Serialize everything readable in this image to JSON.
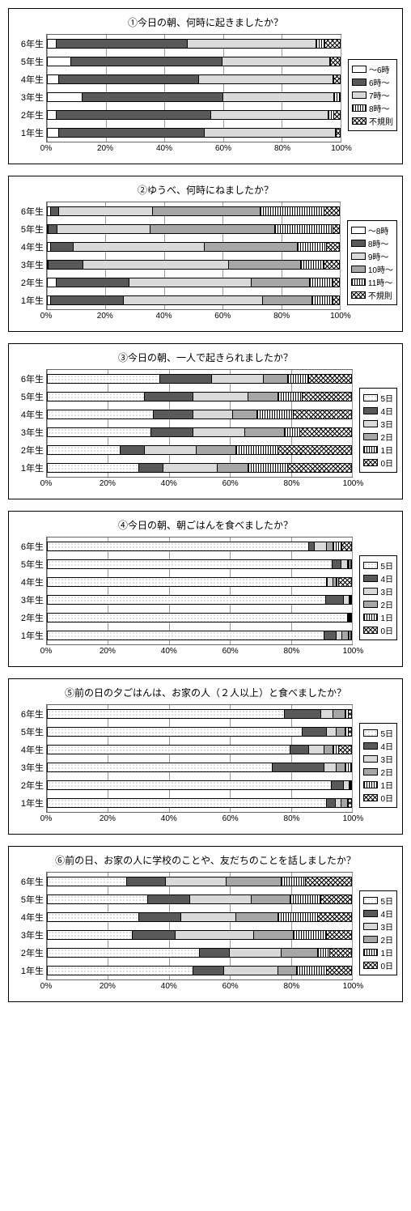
{
  "global": {
    "categories": [
      "6年生",
      "5年生",
      "4年生",
      "3年生",
      "2年生",
      "1年生"
    ],
    "xticks": [
      0,
      20,
      40,
      60,
      80,
      100
    ],
    "xtick_labels": [
      "0%",
      "20%",
      "40%",
      "60%",
      "80%",
      "100%"
    ],
    "patterns": {
      "white": "pat-white",
      "dark": "pat-dark",
      "light": "pat-light",
      "gray": "pat-gray",
      "vstripe": "pat-vstripe",
      "dots": "pat-dots",
      "cross": "pat-cross"
    }
  },
  "charts": [
    {
      "title": "①今日の朝、何時に起きましたか？",
      "legend": [
        {
          "label": "～6時",
          "pattern": "white"
        },
        {
          "label": "6時～",
          "pattern": "dark"
        },
        {
          "label": "7時～",
          "pattern": "light"
        },
        {
          "label": "8時～",
          "pattern": "vstripe"
        },
        {
          "label": "不規則",
          "pattern": "cross"
        }
      ],
      "series": [
        [
          3,
          45,
          44,
          3,
          5
        ],
        [
          8,
          52,
          37,
          0,
          3
        ],
        [
          4,
          48,
          46,
          0,
          2
        ],
        [
          12,
          48,
          38,
          2,
          0
        ],
        [
          3,
          53,
          40,
          2,
          2
        ],
        [
          4,
          50,
          45,
          0,
          1
        ]
      ]
    },
    {
      "title": "②ゆうべ、何時にねましたか？",
      "legend": [
        {
          "label": "～8時",
          "pattern": "white"
        },
        {
          "label": "8時～",
          "pattern": "dark"
        },
        {
          "label": "9時～",
          "pattern": "light"
        },
        {
          "label": "10時～",
          "pattern": "gray"
        },
        {
          "label": "11時～",
          "pattern": "vstripe"
        },
        {
          "label": "不規則",
          "pattern": "cross"
        }
      ],
      "series": [
        [
          1,
          3,
          32,
          37,
          22,
          5
        ],
        [
          0,
          3,
          32,
          43,
          20,
          2
        ],
        [
          1,
          8,
          45,
          32,
          10,
          4
        ],
        [
          0,
          12,
          50,
          25,
          8,
          5
        ],
        [
          3,
          25,
          42,
          20,
          8,
          2
        ],
        [
          1,
          25,
          48,
          17,
          7,
          2
        ]
      ]
    },
    {
      "title": "③今日の朝、一人で起きられましたか？",
      "legend": [
        {
          "label": "5日",
          "pattern": "dots"
        },
        {
          "label": "4日",
          "pattern": "dark"
        },
        {
          "label": "3日",
          "pattern": "light"
        },
        {
          "label": "2日",
          "pattern": "gray"
        },
        {
          "label": "1日",
          "pattern": "vstripe"
        },
        {
          "label": "0日",
          "pattern": "cross"
        }
      ],
      "series": [
        [
          37,
          17,
          17,
          8,
          7,
          14
        ],
        [
          32,
          16,
          18,
          10,
          8,
          16
        ],
        [
          35,
          13,
          13,
          8,
          12,
          19
        ],
        [
          34,
          14,
          17,
          13,
          5,
          17
        ],
        [
          24,
          8,
          17,
          13,
          14,
          24
        ],
        [
          30,
          8,
          18,
          10,
          13,
          21
        ]
      ]
    },
    {
      "title": "④今日の朝、朝ごはんを食べましたか？",
      "legend": [
        {
          "label": "5日",
          "pattern": "dots"
        },
        {
          "label": "4日",
          "pattern": "dark"
        },
        {
          "label": "3日",
          "pattern": "light"
        },
        {
          "label": "2日",
          "pattern": "gray"
        },
        {
          "label": "1日",
          "pattern": "vstripe"
        },
        {
          "label": "0日",
          "pattern": "cross"
        }
      ],
      "series": [
        [
          86,
          2,
          4,
          2,
          3,
          3
        ],
        [
          94,
          3,
          2,
          0,
          1,
          0
        ],
        [
          92,
          0,
          2,
          1,
          1,
          4
        ],
        [
          92,
          6,
          2,
          0,
          0,
          0
        ],
        [
          100,
          0,
          0,
          0,
          0,
          0
        ],
        [
          91,
          4,
          2,
          2,
          1,
          0
        ]
      ]
    },
    {
      "title": "⑤前の日の夕ごはんは、お家の人（２人以上）と食べましたか？",
      "legend": [
        {
          "label": "5日",
          "pattern": "dots"
        },
        {
          "label": "4日",
          "pattern": "dark"
        },
        {
          "label": "3日",
          "pattern": "light"
        },
        {
          "label": "2日",
          "pattern": "gray"
        },
        {
          "label": "1日",
          "pattern": "vstripe"
        },
        {
          "label": "0日",
          "pattern": "cross"
        }
      ],
      "series": [
        [
          78,
          12,
          4,
          4,
          1,
          1
        ],
        [
          84,
          8,
          3,
          3,
          1,
          1
        ],
        [
          80,
          6,
          5,
          3,
          2,
          4
        ],
        [
          74,
          17,
          4,
          3,
          2,
          0
        ],
        [
          94,
          4,
          2,
          0,
          0,
          0
        ],
        [
          92,
          3,
          2,
          2,
          0,
          1
        ]
      ]
    },
    {
      "title": "⑥前の日、お家の人に学校のことや、友だちのことを話しましたか？",
      "legend": [
        {
          "label": "5日",
          "pattern": "dots"
        },
        {
          "label": "4日",
          "pattern": "dark"
        },
        {
          "label": "3日",
          "pattern": "light"
        },
        {
          "label": "2日",
          "pattern": "gray"
        },
        {
          "label": "1日",
          "pattern": "vstripe"
        },
        {
          "label": "0日",
          "pattern": "cross"
        }
      ],
      "series": [
        [
          26,
          13,
          20,
          18,
          8,
          15
        ],
        [
          33,
          14,
          20,
          13,
          10,
          10
        ],
        [
          30,
          14,
          18,
          14,
          13,
          11
        ],
        [
          28,
          14,
          26,
          13,
          11,
          8
        ],
        [
          50,
          10,
          17,
          12,
          4,
          7
        ],
        [
          48,
          10,
          18,
          6,
          10,
          8
        ]
      ]
    }
  ]
}
